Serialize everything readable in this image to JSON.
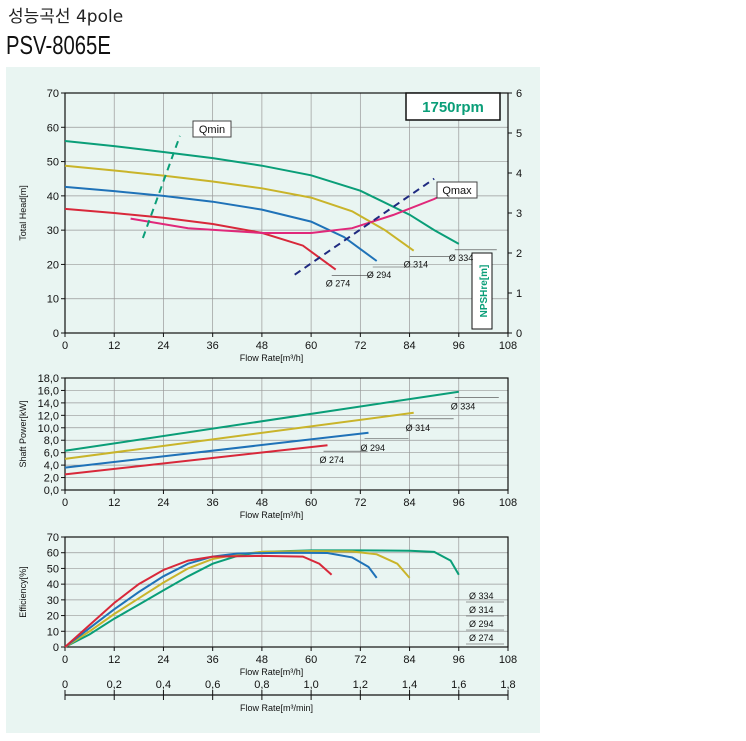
{
  "header": {
    "subtitle": "성능곡선 4pole",
    "model": "PSV-8065E"
  },
  "colors": {
    "d334": "#0a9e78",
    "d314": "#c9b42a",
    "d294": "#1f72b8",
    "d274": "#d8283a",
    "npsh": "#e0287a",
    "qline": "#1f2a80",
    "axis": "#111111",
    "speedText": "#0a9e78"
  },
  "chart_data": [
    {
      "type": "line",
      "xlabel": "Flow Rate[m³/h]",
      "ylabel": "Total Head[m]",
      "y2label": "NPSHre[m]",
      "xlim": [
        0,
        108
      ],
      "ylim": [
        0,
        70
      ],
      "y2lim": [
        0,
        6
      ],
      "xticks": [
        "0",
        "12",
        "24",
        "36",
        "48",
        "60",
        "72",
        "84",
        "96",
        "108"
      ],
      "yticks": [
        "0",
        "10",
        "20",
        "30",
        "40",
        "50",
        "60",
        "70"
      ],
      "y2ticks": [
        "0",
        "1",
        "2",
        "3",
        "4",
        "5",
        "6"
      ],
      "speed_label": "1750rpm",
      "series": [
        {
          "name": "Ø 334",
          "color": "d334",
          "points": [
            [
              0,
              56
            ],
            [
              12,
              54.5
            ],
            [
              24,
              52.8
            ],
            [
              36,
              51
            ],
            [
              48,
              48.8
            ],
            [
              60,
              46
            ],
            [
              72,
              41.5
            ],
            [
              84,
              34.5
            ],
            [
              90,
              30
            ],
            [
              96,
              26
            ]
          ]
        },
        {
          "name": "Ø 314",
          "color": "d314",
          "points": [
            [
              0,
              48.8
            ],
            [
              12,
              47.4
            ],
            [
              24,
              45.9
            ],
            [
              36,
              44.2
            ],
            [
              48,
              42.2
            ],
            [
              60,
              39.5
            ],
            [
              70,
              35.5
            ],
            [
              78,
              30
            ],
            [
              85,
              24
            ]
          ]
        },
        {
          "name": "Ø 294",
          "color": "d294",
          "points": [
            [
              0,
              42.6
            ],
            [
              12,
              41.4
            ],
            [
              24,
              40
            ],
            [
              36,
              38.3
            ],
            [
              48,
              36
            ],
            [
              60,
              32.5
            ],
            [
              68,
              28
            ],
            [
              76,
              21
            ]
          ]
        },
        {
          "name": "Ø 274",
          "color": "d274",
          "points": [
            [
              0,
              36.2
            ],
            [
              12,
              35
            ],
            [
              24,
              33.6
            ],
            [
              36,
              31.8
            ],
            [
              48,
              29.2
            ],
            [
              58,
              25.5
            ],
            [
              66,
              18.5
            ]
          ]
        },
        {
          "name": "NPSHre",
          "color": "npsh",
          "axis": "y2",
          "points": [
            [
              16,
              2.86
            ],
            [
              30,
              2.62
            ],
            [
              48,
              2.5
            ],
            [
              60,
              2.5
            ],
            [
              70,
              2.62
            ],
            [
              80,
              2.95
            ],
            [
              90,
              3.35
            ],
            [
              93,
              3.5
            ]
          ]
        }
      ],
      "q_lines": [
        {
          "name": "Qmin",
          "points": [
            [
              19,
              27.7
            ],
            [
              28,
              57.5
            ]
          ]
        },
        {
          "name": "Qmax",
          "points": [
            [
              56,
              17
            ],
            [
              90,
              45
            ]
          ]
        }
      ]
    },
    {
      "type": "line",
      "xlabel": "Flow Rate[m³/h]",
      "ylabel": "Shaft Power[kW]",
      "xlim": [
        0,
        108
      ],
      "ylim": [
        0,
        18
      ],
      "xticks": [
        "0",
        "12",
        "24",
        "36",
        "48",
        "60",
        "72",
        "84",
        "96",
        "108"
      ],
      "yticks": [
        "0,0",
        "2,0",
        "4,0",
        "6,0",
        "8,0",
        "10,0",
        "12,0",
        "14,0",
        "16,0",
        "18,0"
      ],
      "series": [
        {
          "name": "Ø 334",
          "color": "d334",
          "points": [
            [
              0,
              6.3
            ],
            [
              96,
              15.8
            ]
          ]
        },
        {
          "name": "Ø 314",
          "color": "d314",
          "points": [
            [
              0,
              5.0
            ],
            [
              85,
              12.4
            ]
          ]
        },
        {
          "name": "Ø 294",
          "color": "d294",
          "points": [
            [
              0,
              3.6
            ],
            [
              74,
              9.2
            ]
          ]
        },
        {
          "name": "Ø 274",
          "color": "d274",
          "points": [
            [
              0,
              2.5
            ],
            [
              64,
              7.2
            ]
          ]
        }
      ]
    },
    {
      "type": "line",
      "xlabel": "Flow Rate[m³/h]",
      "ylabel": "Efficiency[%]",
      "xlim": [
        0,
        108
      ],
      "ylim": [
        0,
        70
      ],
      "xticks": [
        "0",
        "12",
        "24",
        "36",
        "48",
        "60",
        "72",
        "84",
        "96",
        "108"
      ],
      "yticks": [
        "0",
        "10",
        "20",
        "30",
        "40",
        "50",
        "60",
        "70"
      ],
      "x2label": "Flow Rate[m³/min]",
      "x2lim": [
        0,
        1.8
      ],
      "x2ticks": [
        "0",
        "0,2",
        "0,4",
        "0,6",
        "0,8",
        "1,0",
        "1,2",
        "1,4",
        "1,6",
        "1,8"
      ],
      "series": [
        {
          "name": "Ø 334",
          "color": "d334",
          "points": [
            [
              0,
              0
            ],
            [
              6,
              8
            ],
            [
              12,
              18
            ],
            [
              18,
              27
            ],
            [
              24,
              36
            ],
            [
              30,
              45
            ],
            [
              36,
              53
            ],
            [
              42,
              58
            ],
            [
              48,
              60.5
            ],
            [
              60,
              61.5
            ],
            [
              72,
              61.5
            ],
            [
              84,
              61.3
            ],
            [
              90,
              60.5
            ],
            [
              94,
              55
            ],
            [
              96,
              46
            ]
          ]
        },
        {
          "name": "Ø 314",
          "color": "d314",
          "points": [
            [
              0,
              0
            ],
            [
              6,
              10
            ],
            [
              12,
              21
            ],
            [
              18,
              31
            ],
            [
              24,
              41
            ],
            [
              30,
              50
            ],
            [
              36,
              56
            ],
            [
              42,
              59
            ],
            [
              48,
              60.5
            ],
            [
              60,
              61
            ],
            [
              70,
              60.8
            ],
            [
              76,
              59
            ],
            [
              81,
              53
            ],
            [
              84,
              44
            ]
          ]
        },
        {
          "name": "Ø 294",
          "color": "d294",
          "points": [
            [
              0,
              0
            ],
            [
              6,
              12
            ],
            [
              12,
              24
            ],
            [
              18,
              35
            ],
            [
              24,
              45
            ],
            [
              30,
              53
            ],
            [
              36,
              57.5
            ],
            [
              42,
              59.5
            ],
            [
              54,
              60
            ],
            [
              64,
              59.8
            ],
            [
              70,
              57
            ],
            [
              74,
              51
            ],
            [
              76,
              44
            ]
          ]
        },
        {
          "name": "Ø 274",
          "color": "d274",
          "points": [
            [
              0,
              0
            ],
            [
              6,
              14
            ],
            [
              12,
              28
            ],
            [
              18,
              40
            ],
            [
              24,
              49
            ],
            [
              30,
              55
            ],
            [
              36,
              57.5
            ],
            [
              48,
              58
            ],
            [
              58,
              57.5
            ],
            [
              62,
              53
            ],
            [
              65,
              46
            ]
          ]
        }
      ],
      "legend": [
        "Ø 334",
        "Ø 314",
        "Ø 294",
        "Ø 274"
      ]
    }
  ]
}
